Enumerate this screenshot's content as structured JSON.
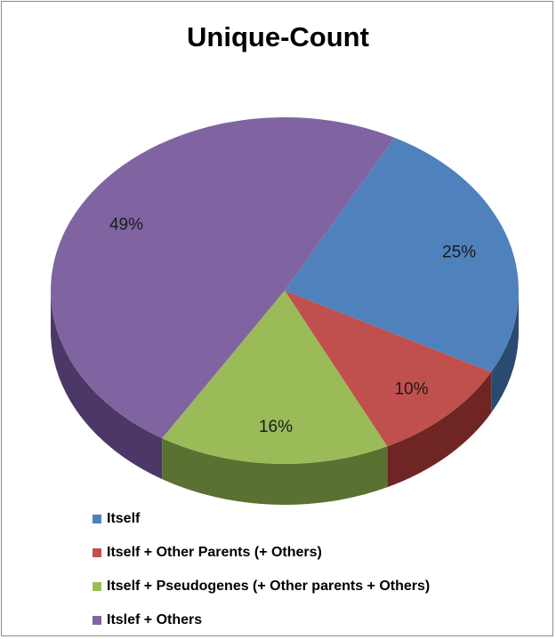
{
  "chart_data": {
    "type": "pie",
    "title": "Unique-Count",
    "categories": [
      "Itself",
      "Itself + Other Parents (+ Others)",
      "Itself + Pseudogenes (+ Other parents + Others)",
      "Itslef + Others"
    ],
    "values": [
      25,
      10,
      16,
      49
    ],
    "data_labels": [
      "25%",
      "10%",
      "16%",
      "49%"
    ],
    "colors": [
      "#4f81bd",
      "#c0504d",
      "#9bbb59",
      "#8064a2"
    ],
    "dark_colors": [
      "#2a4a72",
      "#6e2523",
      "#5a7131",
      "#4b3866"
    ],
    "legend_position": "bottom-left",
    "style": "3d-pie"
  }
}
